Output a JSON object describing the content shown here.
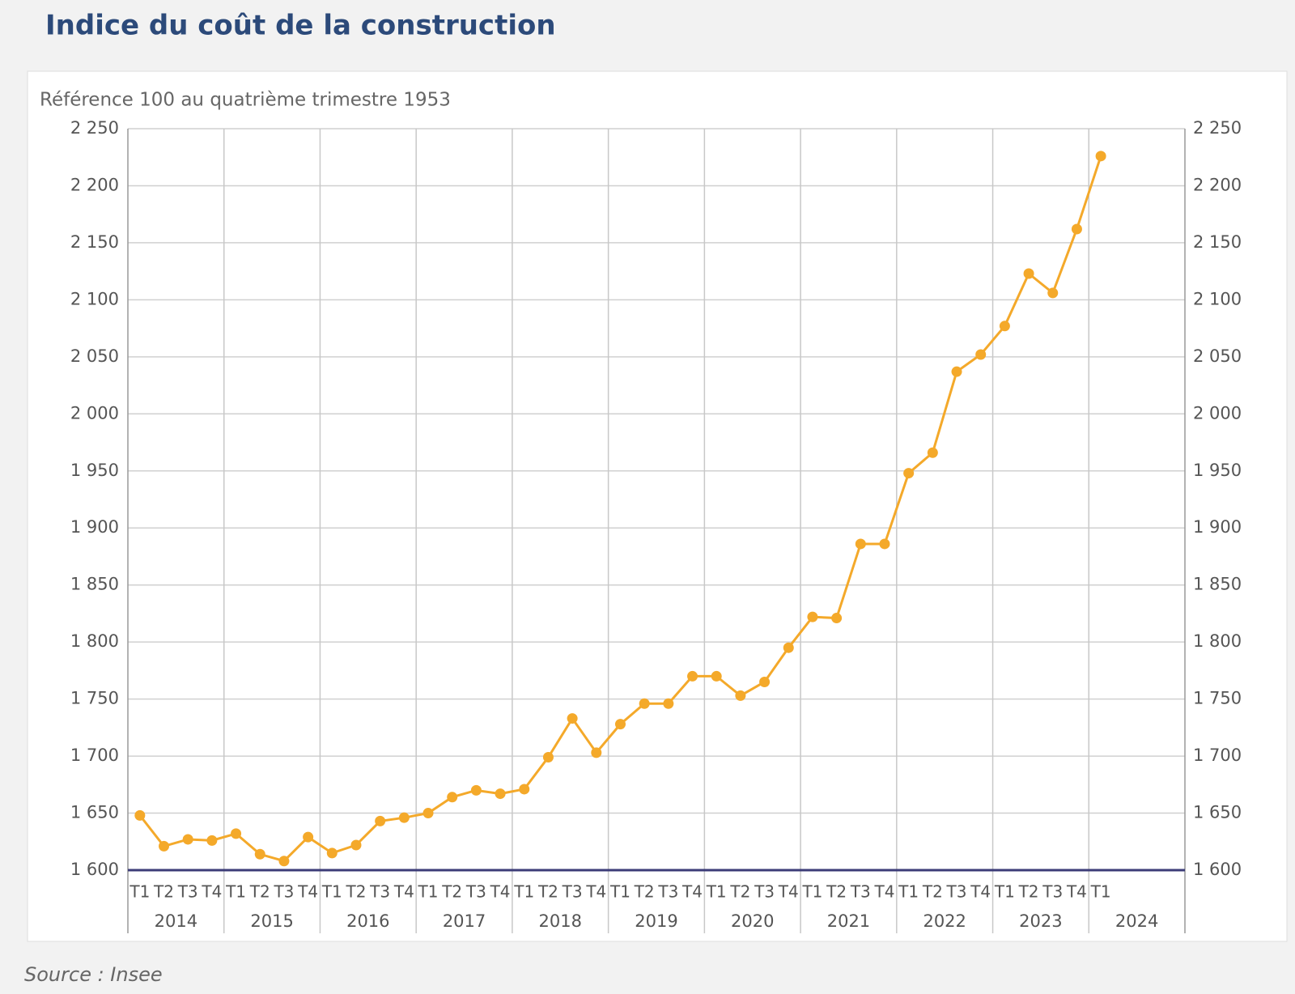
{
  "chart_data": {
    "type": "line",
    "title": "Indice du coût de la construction",
    "subtitle": "Référence 100 au quatrième trimestre 1953",
    "source": "Source : Insee",
    "categories": [
      "T1",
      "T2",
      "T3",
      "T4",
      "T1",
      "T2",
      "T3",
      "T4",
      "T1",
      "T2",
      "T3",
      "T4",
      "T1",
      "T2",
      "T3",
      "T4",
      "T1",
      "T2",
      "T3",
      "T4",
      "T1",
      "T2",
      "T3",
      "T4",
      "T1",
      "T2",
      "T3",
      "T4",
      "T1",
      "T2",
      "T3",
      "T4",
      "T1",
      "T2",
      "T3",
      "T4",
      "T1",
      "T2",
      "T3",
      "T4",
      "T1"
    ],
    "years": [
      "2014",
      "2015",
      "2016",
      "2017",
      "2018",
      "2019",
      "2020",
      "2021",
      "2022",
      "2023",
      "2024"
    ],
    "values": [
      1648,
      1621,
      1627,
      1626,
      1632,
      1614,
      1608,
      1629,
      1615,
      1622,
      1643,
      1646,
      1650,
      1664,
      1670,
      1667,
      1671,
      1699,
      1733,
      1703,
      1728,
      1746,
      1746,
      1770,
      1770,
      1753,
      1765,
      1795,
      1822,
      1821,
      1886,
      1886,
      1948,
      1966,
      2037,
      2052,
      2077,
      2123,
      2106,
      2162,
      2226
    ],
    "color": "#f4a92a",
    "ylim": [
      1600,
      2250
    ],
    "yticks": [
      {
        "value": 1600,
        "label": "1 600"
      },
      {
        "value": 1650,
        "label": "1 650"
      },
      {
        "value": 1700,
        "label": "1 700"
      },
      {
        "value": 1750,
        "label": "1 750"
      },
      {
        "value": 1800,
        "label": "1 800"
      },
      {
        "value": 1850,
        "label": "1 850"
      },
      {
        "value": 1900,
        "label": "1 900"
      },
      {
        "value": 1950,
        "label": "1 950"
      },
      {
        "value": 2000,
        "label": "2 000"
      },
      {
        "value": 2050,
        "label": "2 050"
      },
      {
        "value": 2100,
        "label": "2 100"
      },
      {
        "value": 2150,
        "label": "2 150"
      },
      {
        "value": 2200,
        "label": "2 200"
      },
      {
        "value": 2250,
        "label": "2 250"
      }
    ],
    "grid": true
  }
}
